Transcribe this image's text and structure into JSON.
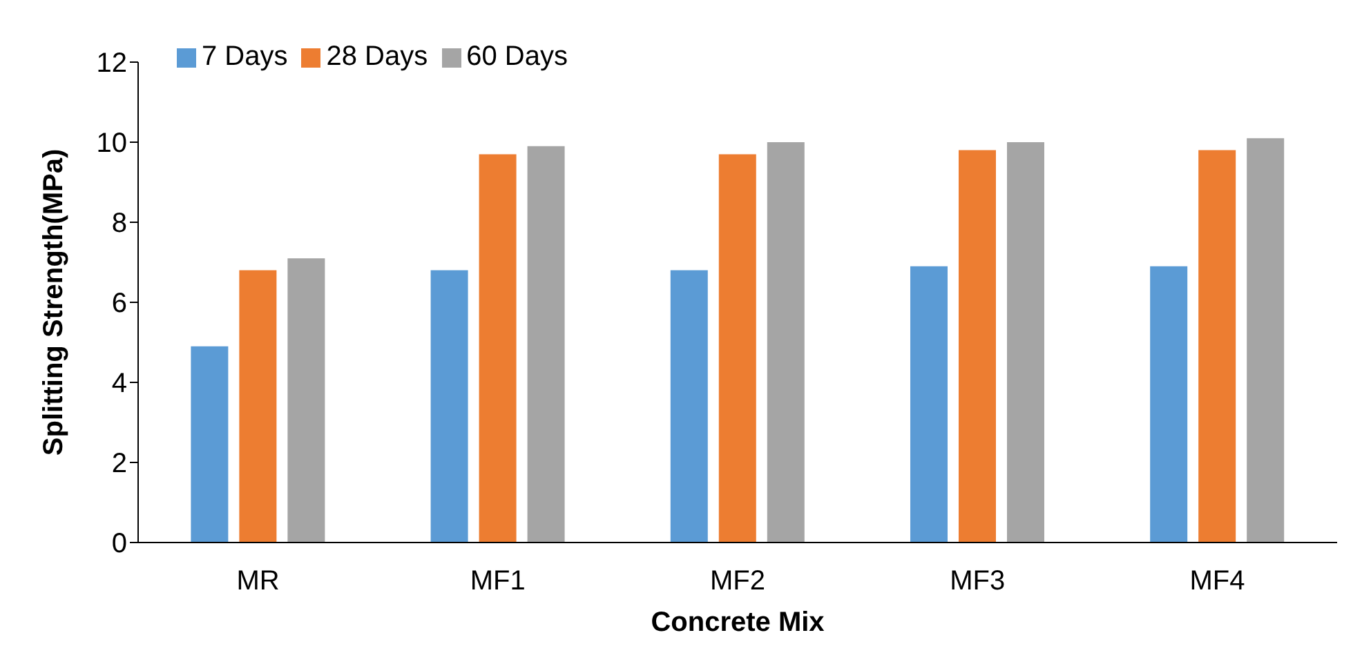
{
  "chart_data": {
    "type": "bar",
    "xlabel": "Concrete Mix",
    "ylabel": "Splitting Strength(MPa)",
    "categories": [
      "MR",
      "MF1",
      "MF2",
      "MF3",
      "MF4"
    ],
    "series": [
      {
        "name": "7 Days",
        "color": "#5b9bd5",
        "values": [
          4.9,
          6.8,
          6.8,
          6.9,
          6.9
        ]
      },
      {
        "name": "28 Days",
        "color": "#ed7d31",
        "values": [
          6.8,
          9.7,
          9.7,
          9.8,
          9.8
        ]
      },
      {
        "name": "60 Days",
        "color": "#a5a5a5",
        "values": [
          7.1,
          9.9,
          10.0,
          10.0,
          10.1
        ]
      }
    ],
    "ylim": [
      0,
      12
    ],
    "yticks": [
      0,
      2,
      4,
      6,
      8,
      10,
      12
    ],
    "grid": false,
    "legend": "top left"
  }
}
